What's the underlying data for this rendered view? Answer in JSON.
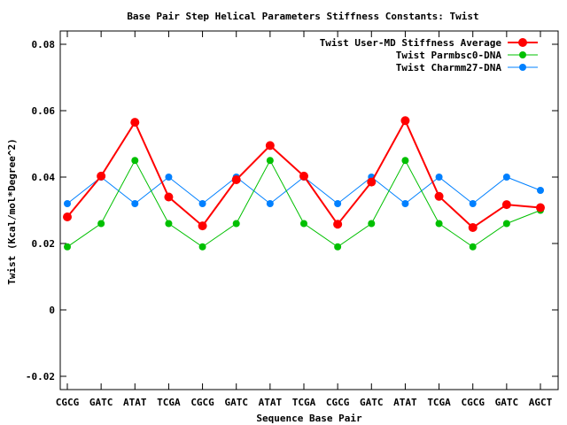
{
  "chart_data": {
    "type": "line",
    "title": "Base Pair Step Helical Parameters Stiffness Constants: Twist",
    "xlabel": "Sequence Base Pair",
    "ylabel": "Twist (Kcal/mol*Degree^2)",
    "categories": [
      "CGCG",
      "GATC",
      "ATAT",
      "TCGA",
      "CGCG",
      "GATC",
      "ATAT",
      "TCGA",
      "CGCG",
      "GATC",
      "ATAT",
      "TCGA",
      "CGCG",
      "GATC",
      "AGCT"
    ],
    "ylim": [
      -0.024,
      0.084
    ],
    "yticks": [
      -0.02,
      0,
      0.02,
      0.04,
      0.06,
      0.08
    ],
    "ytick_labels": [
      "-0.02",
      "0",
      "0.02",
      "0.04",
      "0.06",
      "0.08"
    ],
    "legend_position": "top-right",
    "grid": false,
    "series": [
      {
        "name": "Twist User-MD Stiffness Average",
        "color": "#ff0000",
        "values": [
          0.028,
          0.0403,
          0.0565,
          0.034,
          0.0253,
          0.0392,
          0.0495,
          0.0403,
          0.0258,
          0.0385,
          0.057,
          0.0342,
          0.0248,
          0.0317,
          0.0308
        ]
      },
      {
        "name": "Twist Parmbsc0-DNA",
        "color": "#00c000",
        "values": [
          0.019,
          0.026,
          0.045,
          0.026,
          0.019,
          0.026,
          0.045,
          0.026,
          0.019,
          0.026,
          0.045,
          0.026,
          0.019,
          0.026,
          0.03
        ]
      },
      {
        "name": "Twist Charmm27-DNA",
        "color": "#0080ff",
        "values": [
          0.032,
          0.04,
          0.032,
          0.04,
          0.032,
          0.04,
          0.032,
          0.04,
          0.032,
          0.04,
          0.032,
          0.04,
          0.032,
          0.04,
          0.036
        ]
      }
    ]
  }
}
